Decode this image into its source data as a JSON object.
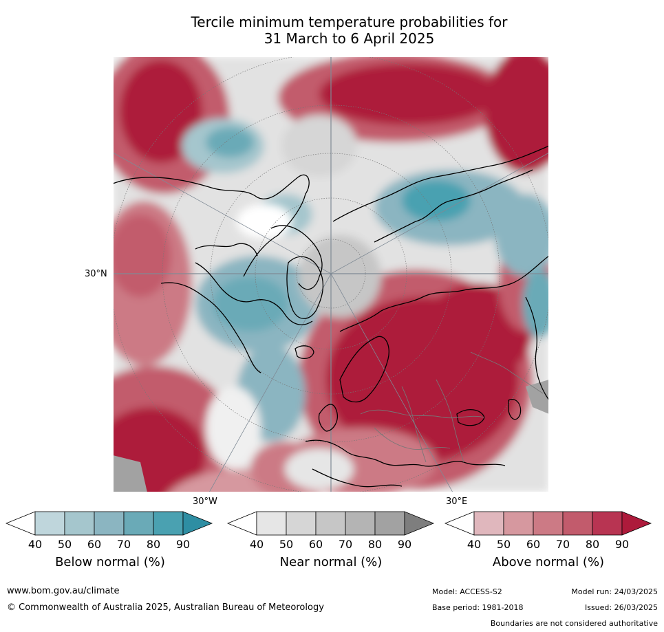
{
  "title_line1": "Tercile minimum temperature probabilities for",
  "title_line2": "31 March to 6 April 2025",
  "map": {
    "labels": {
      "lat": "30°N",
      "lon_w": "30°W",
      "lon_e": "30°E"
    },
    "colors": {
      "below": [
        "#bfd6dc",
        "#a5c6cd",
        "#8bb5c1",
        "#6aaab7",
        "#4aa1b1",
        "#2e8ea3"
      ],
      "near": [
        "#e6e6e6",
        "#d6d6d6",
        "#c6c6c6",
        "#b4b4b4",
        "#a2a2a2",
        "#7e7e7e"
      ],
      "above": [
        "#e0b7bd",
        "#d6989f",
        "#cc7a85",
        "#c25b6c",
        "#b83452",
        "#ad1a3b"
      ]
    }
  },
  "legends": [
    {
      "label": "Below normal (%)",
      "ticks": [
        "40",
        "50",
        "60",
        "70",
        "80",
        "90"
      ]
    },
    {
      "label": "Near normal (%)",
      "ticks": [
        "40",
        "50",
        "60",
        "70",
        "80",
        "90"
      ]
    },
    {
      "label": "Above normal (%)",
      "ticks": [
        "40",
        "50",
        "60",
        "70",
        "80",
        "90"
      ]
    }
  ],
  "footer": {
    "website": "www.bom.gov.au/climate",
    "copyright": "© Commonwealth of Australia 2025, Australian Bureau of Meteorology",
    "model": "Model: ACCESS-S2",
    "model_run": "Model run: 24/03/2025",
    "base_period": "Base period: 1981-2018",
    "issued": "Issued: 26/03/2025",
    "disclaimer": "Boundaries are not considered authoritative"
  }
}
